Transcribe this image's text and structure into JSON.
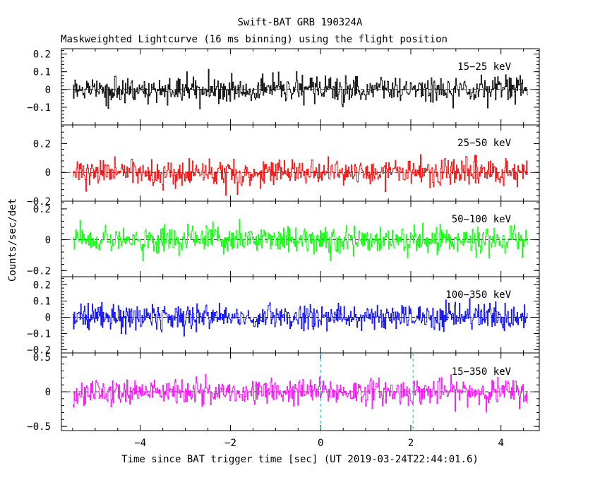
{
  "title": "Swift-BAT GRB 190324A",
  "subtitle": "Maskweighted Lightcurve (16 ms binning) using the flight position",
  "xlabel": "Time since BAT trigger time [sec] (UT 2019-03-24T22:44:01.6)",
  "ylabel": "Counts/sec/det",
  "chart_data": {
    "type": "line",
    "x_range": [
      -5.5,
      4.6
    ],
    "xlim": [
      -5.75,
      4.85
    ],
    "x_ticks": [
      -4,
      -2,
      0,
      2,
      4
    ],
    "x_tick_labels": [
      "−4",
      "−2",
      "0",
      "2",
      "4"
    ],
    "bin_width_sec": 0.016,
    "markers": [
      0,
      2.05
    ],
    "marker_color": "#00bcd4",
    "panels": [
      {
        "band": "15−25 keV",
        "color": "#000000",
        "ylim": [
          -0.2,
          0.23
        ],
        "yticks": [
          -0.1,
          0,
          0.1,
          0.2
        ],
        "ytick_labels": [
          "−0.1",
          "0",
          "0.1",
          "0.2"
        ],
        "noise_amplitude": 0.07
      },
      {
        "band": "25−50 keV",
        "color": "#ff0000",
        "ylim": [
          -0.2,
          0.33
        ],
        "yticks": [
          -0.2,
          0,
          0.2
        ],
        "ytick_labels": [
          "−0.2",
          "0",
          "0.2"
        ],
        "noise_amplitude": 0.085
      },
      {
        "band": "50−100 keV",
        "color": "#00ff00",
        "ylim": [
          -0.24,
          0.25
        ],
        "yticks": [
          -0.2,
          0,
          0.2
        ],
        "ytick_labels": [
          "−0.2",
          "0",
          "0.2"
        ],
        "noise_amplitude": 0.08
      },
      {
        "band": "100−350 keV",
        "color": "#0000ff",
        "ylim": [
          -0.22,
          0.25
        ],
        "yticks": [
          -0.2,
          -0.1,
          0,
          0.1,
          0.2
        ],
        "ytick_labels": [
          "−0.2",
          "−0.1",
          "0",
          "0.1",
          "0.2"
        ],
        "noise_amplitude": 0.075
      },
      {
        "band": "15−350 keV",
        "color": "#ff00ff",
        "ylim": [
          -0.56,
          0.56
        ],
        "yticks": [
          -0.5,
          0,
          0.5
        ],
        "ytick_labels": [
          "−0.5",
          "0",
          "0.5"
        ],
        "noise_amplitude": 0.17
      }
    ]
  }
}
